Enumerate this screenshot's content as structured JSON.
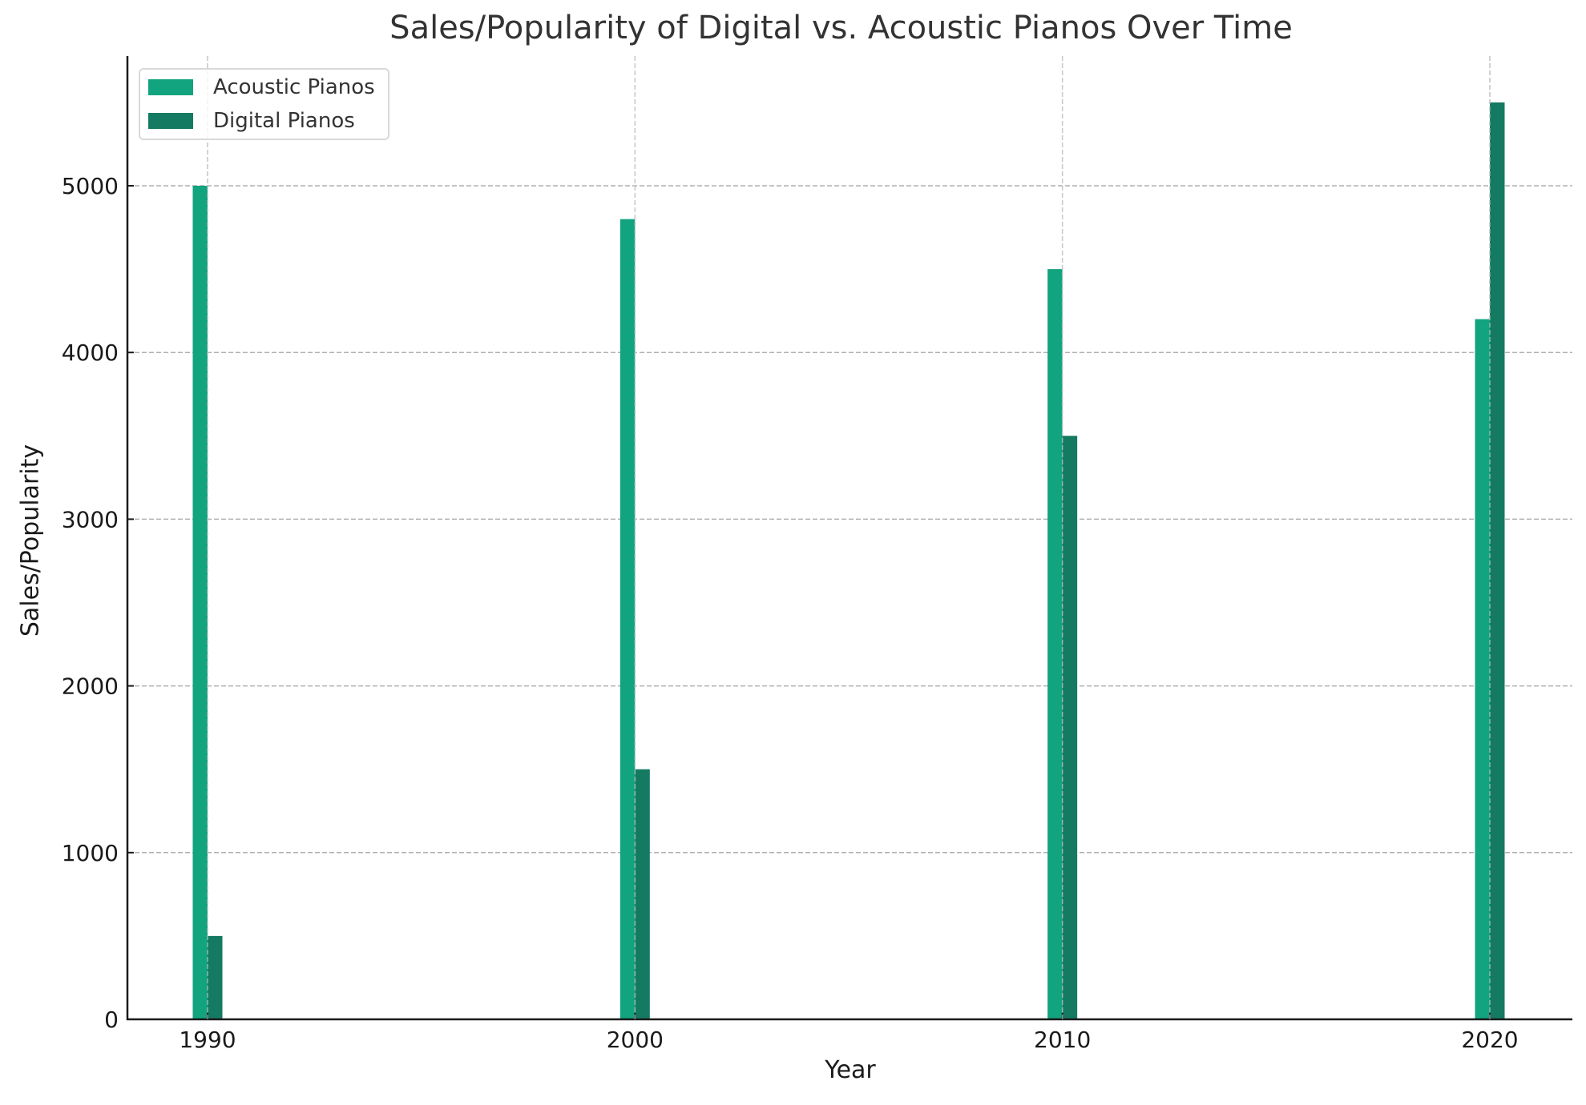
{
  "chart_data": {
    "type": "bar",
    "title": "Sales/Popularity of Digital vs. Acoustic Pianos Over Time",
    "xlabel": "Year",
    "ylabel": "Sales/Popularity",
    "categories": [
      "1990",
      "2000",
      "2010",
      "2020"
    ],
    "x": [
      1990,
      2000,
      2010,
      2020
    ],
    "series": [
      {
        "name": "Acoustic Pianos",
        "values": [
          5000,
          4800,
          4500,
          4200
        ],
        "color": "#12a37f"
      },
      {
        "name": "Digital Pianos",
        "values": [
          500,
          1500,
          3500,
          5500
        ],
        "color": "#157a62"
      }
    ],
    "yticks": [
      0,
      1000,
      2000,
      3000,
      4000,
      5000
    ],
    "xticks": [
      "1990",
      "2000",
      "2010",
      "2020"
    ],
    "ylim": [
      0,
      5775
    ],
    "xlim": [
      1988.1,
      2021.9
    ],
    "grid": true,
    "legend_position": "upper left"
  },
  "legend": {
    "items": [
      {
        "label": "Acoustic Pianos",
        "color": "#12a37f"
      },
      {
        "label": "Digital Pianos",
        "color": "#157a62"
      }
    ]
  },
  "colors": {
    "acoustic": "#12a37f",
    "digital": "#157a62",
    "axis": "#1a1a1a",
    "grid": "#b0b0b0",
    "title": "#333333"
  }
}
